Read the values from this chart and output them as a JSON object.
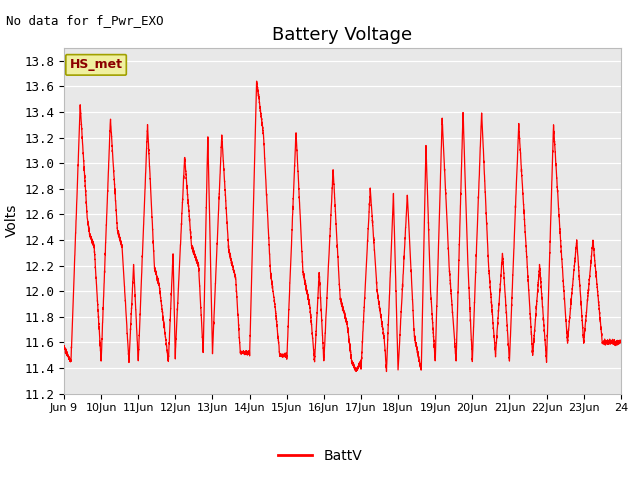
{
  "title": "Battery Voltage",
  "ylabel": "Volts",
  "no_data_text": "No data for f_Pwr_EXO",
  "hs_met_label": "HS_met",
  "legend_label": "BattV",
  "line_color": "#ff0000",
  "plot_bg": "#e8e8e8",
  "ylim": [
    11.2,
    13.9
  ],
  "xlim": [
    0,
    15
  ],
  "yticks": [
    11.2,
    11.4,
    11.6,
    11.8,
    12.0,
    12.2,
    12.4,
    12.6,
    12.8,
    13.0,
    13.2,
    13.4,
    13.6,
    13.8
  ],
  "xtick_pos": [
    0,
    1,
    2,
    3,
    4,
    5,
    6,
    7,
    8,
    9,
    10,
    11,
    12,
    13,
    14,
    15
  ],
  "xtick_labels": [
    "Jun 9",
    "10Jun",
    "11Jun",
    "12Jun",
    "13Jun",
    "14Jun",
    "15Jun",
    "16Jun",
    "17Jun",
    "18Jun",
    "19Jun",
    "20Jun",
    "21Jun",
    "22Jun",
    "23Jun",
    "24"
  ]
}
